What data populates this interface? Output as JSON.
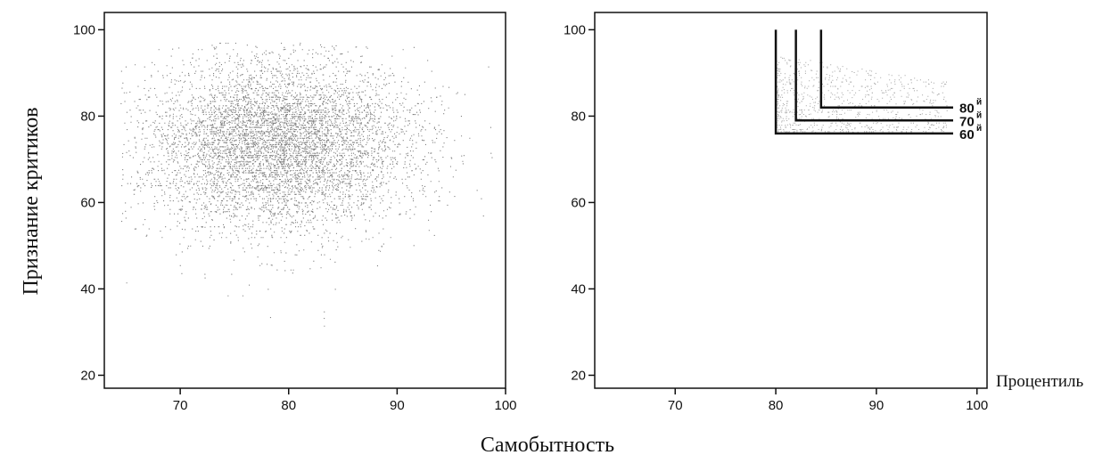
{
  "figure": {
    "ylabel": "Признание критиков",
    "xlabel": "Самобытность",
    "percentile_label": "Процентиль"
  },
  "chart_data": [
    {
      "type": "scatter",
      "panel": "left",
      "x_range": [
        63,
        100
      ],
      "y_range": [
        17,
        104
      ],
      "x_ticks": [
        70,
        80,
        90,
        100
      ],
      "y_ticks": [
        20,
        40,
        60,
        80,
        100
      ],
      "grid": false,
      "point_color": "#555555",
      "distribution": {
        "n_points": 6500,
        "x_center": 79,
        "x_spread": 6.2,
        "y_center": 73.5,
        "y_spread": 10,
        "x_extent": [
          64.5,
          99
        ],
        "y_extent": [
          21,
          97
        ]
      }
    },
    {
      "type": "scatter",
      "panel": "right",
      "x_range": [
        62,
        101
      ],
      "y_range": [
        17,
        104
      ],
      "x_ticks": [
        70,
        80,
        90,
        100
      ],
      "y_ticks": [
        20,
        40,
        60,
        80,
        100
      ],
      "grid": false,
      "point_color": "#666666",
      "percentile_cutoffs": [
        {
          "label": "80",
          "suffix": "й",
          "x": 84.5,
          "y": 82
        },
        {
          "label": "70",
          "suffix": "й",
          "x": 82,
          "y": 79
        },
        {
          "label": "60",
          "suffix": "й",
          "x": 80,
          "y": 76
        }
      ],
      "distribution": {
        "n_points": 900,
        "x_extent": [
          80,
          97
        ],
        "y_extent": [
          76,
          94
        ]
      }
    }
  ]
}
